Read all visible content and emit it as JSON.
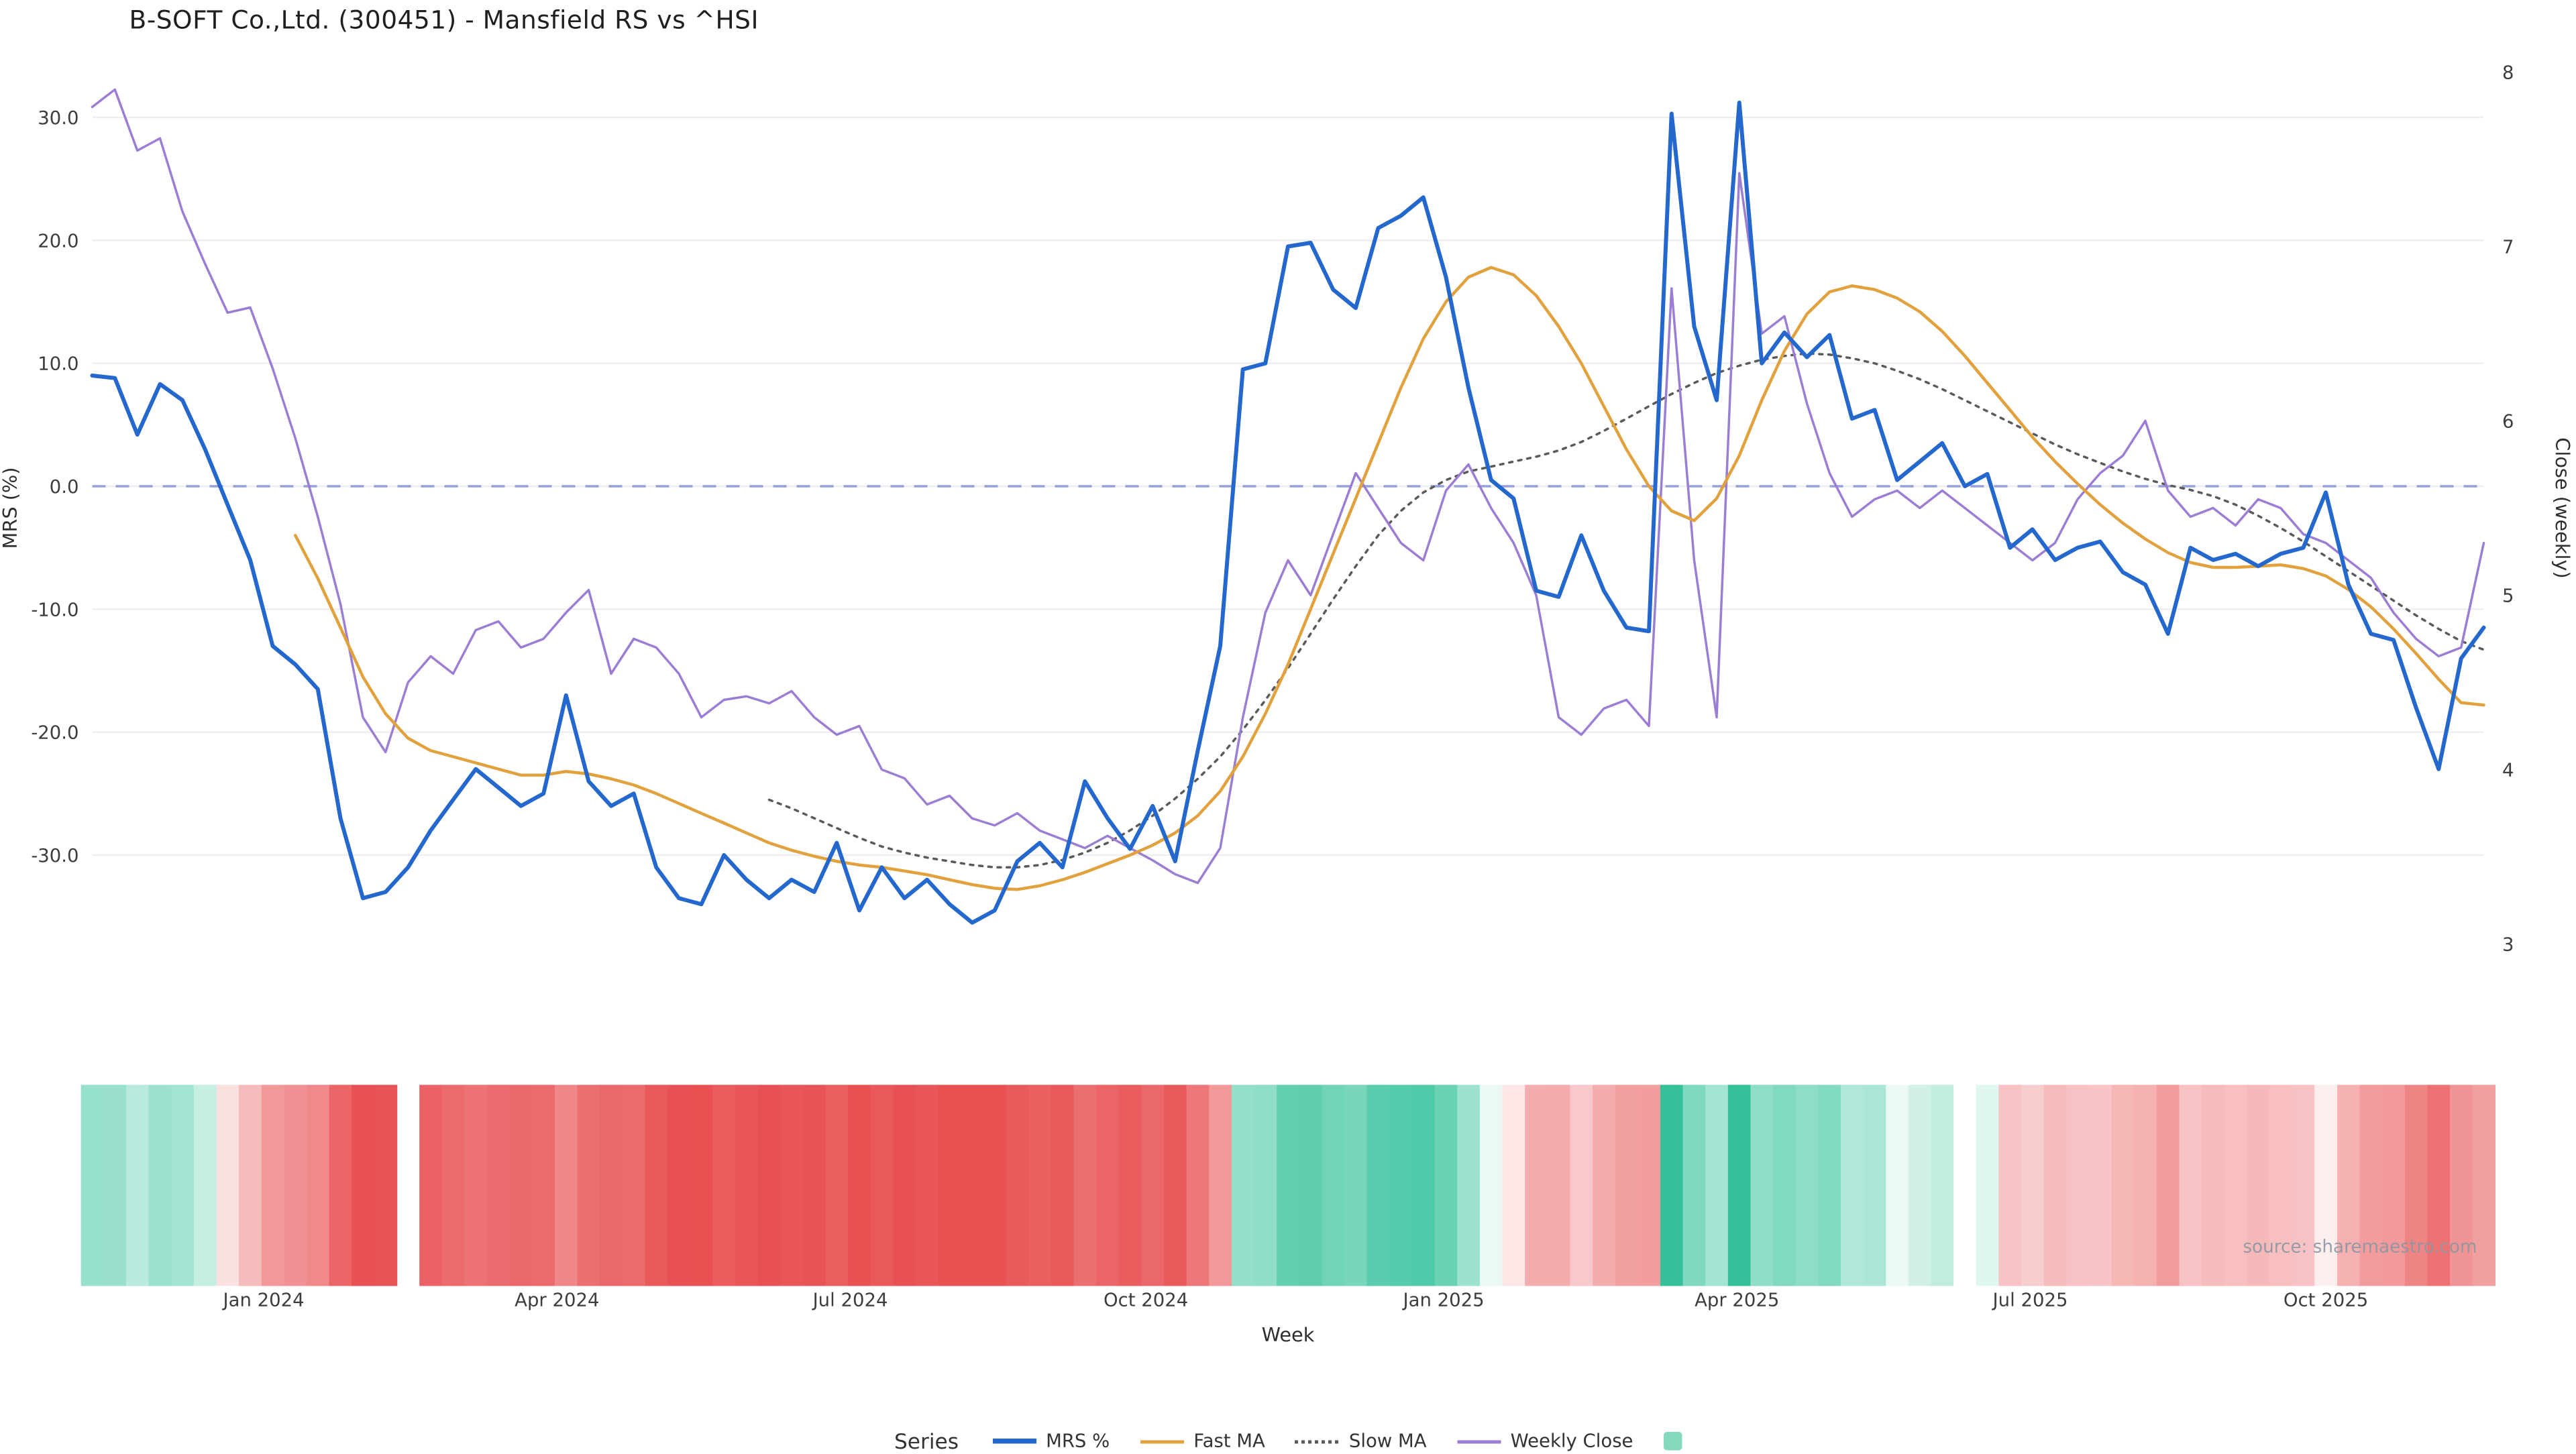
{
  "title": "B-SOFT Co.,Ltd. (300451) - Mansfield RS vs ^HSI",
  "source": "source: sharemaestro.com",
  "legend": {
    "label": "Series",
    "swatch_color": "#85d9bc"
  },
  "chart_data": {
    "type": "line",
    "title": "B-SOFT Co.,Ltd. (300451) - Mansfield RS vs ^HSI",
    "xlabel": "Week",
    "ylabel_left": "MRS (%)",
    "ylabel_right": "Close (weekly)",
    "n_weeks": 107,
    "grid": "horizontal-only",
    "legend_position": "bottom-center",
    "y_left": {
      "range": [
        -38.5,
        34.5
      ],
      "ticks": [
        {
          "v": 30,
          "label": "30.0"
        },
        {
          "v": 20,
          "label": "20.0"
        },
        {
          "v": 10,
          "label": "10.0"
        },
        {
          "v": 0,
          "label": "0.0"
        },
        {
          "v": -10,
          "label": "-10.0"
        },
        {
          "v": -20,
          "label": "-20.0"
        },
        {
          "v": -30,
          "label": "-30.0"
        }
      ]
    },
    "y_right": {
      "range": [
        3,
        8
      ],
      "ticks": [
        {
          "v": 8,
          "label": "8"
        },
        {
          "v": 7,
          "label": "7"
        },
        {
          "v": 6,
          "label": "6"
        },
        {
          "v": 5,
          "label": "5"
        },
        {
          "v": 4,
          "label": "4"
        },
        {
          "v": 3,
          "label": "3"
        }
      ]
    },
    "x_ticks": [
      {
        "pos": 7.6,
        "label": "Jan 2024"
      },
      {
        "pos": 20.6,
        "label": "Apr 2024"
      },
      {
        "pos": 33.6,
        "label": "Jul 2024"
      },
      {
        "pos": 46.7,
        "label": "Oct 2024"
      },
      {
        "pos": 59.9,
        "label": "Jan 2025"
      },
      {
        "pos": 72.9,
        "label": "Apr 2025"
      },
      {
        "pos": 85.9,
        "label": "Jul 2025"
      },
      {
        "pos": 99.0,
        "label": "Oct 2025"
      }
    ],
    "zero_line": {
      "value": 0,
      "color": "#95a0da",
      "style": "dashed"
    },
    "series": [
      {
        "name": "MRS %",
        "axis": "left",
        "color": "#2468cd",
        "width": 2.4,
        "style": "solid",
        "values": [
          9.0,
          8.8,
          4.2,
          8.3,
          7.0,
          3.0,
          -1.5,
          -6.0,
          -13.0,
          -14.5,
          -16.5,
          -27.0,
          -33.5,
          -33.0,
          -31.0,
          -28.0,
          -25.5,
          -23.0,
          -24.5,
          -26.0,
          -25.0,
          -17.0,
          -24.0,
          -26.0,
          -25.0,
          -31.0,
          -33.5,
          -34.0,
          -30.0,
          -32.0,
          -33.5,
          -32.0,
          -33.0,
          -29.0,
          -34.5,
          -31.0,
          -33.5,
          -32.0,
          -34.0,
          -35.5,
          -34.5,
          -30.5,
          -29.0,
          -31.0,
          -24.0,
          -27.0,
          -29.5,
          -26.0,
          -30.5,
          -21.5,
          -13.0,
          9.5,
          10.0,
          19.5,
          19.8,
          16.0,
          14.5,
          21.0,
          22.0,
          23.5,
          17.0,
          8.0,
          0.5,
          -1.0,
          -8.5,
          -9.0,
          -4.0,
          -8.5,
          -11.5,
          -11.8,
          30.3,
          13.0,
          7.0,
          31.2,
          10.0,
          12.5,
          10.5,
          12.3,
          5.5,
          6.2,
          0.5,
          2.0,
          3.5,
          0.0,
          1.0,
          -5.0,
          -3.5,
          -6.0,
          -5.0,
          -4.5,
          -7.0,
          -8.0,
          -12.0,
          -5.0,
          -6.0,
          -5.5,
          -6.5,
          -5.5,
          -5.0,
          -0.5,
          -8.0,
          -12.0,
          -12.5,
          -18.0,
          -23.0,
          -14.0,
          -11.5
        ]
      },
      {
        "name": "Fast MA",
        "axis": "left",
        "color": "#e1a13c",
        "width": 1.8,
        "style": "solid",
        "values": [
          null,
          null,
          null,
          null,
          null,
          null,
          null,
          null,
          null,
          -4.0,
          -7.5,
          -11.5,
          -15.5,
          -18.5,
          -20.5,
          -21.5,
          -22.0,
          -22.5,
          -23.0,
          -23.5,
          -23.5,
          -23.2,
          -23.4,
          -23.8,
          -24.3,
          -25.0,
          -25.8,
          -26.6,
          -27.4,
          -28.2,
          -29.0,
          -29.6,
          -30.1,
          -30.5,
          -30.8,
          -31.0,
          -31.3,
          -31.6,
          -32.0,
          -32.4,
          -32.7,
          -32.8,
          -32.5,
          -32.0,
          -31.4,
          -30.7,
          -30.0,
          -29.2,
          -28.2,
          -26.8,
          -24.8,
          -22.0,
          -18.5,
          -14.5,
          -10.0,
          -5.5,
          -1.0,
          3.5,
          8.0,
          12.0,
          15.0,
          17.0,
          17.8,
          17.2,
          15.5,
          13.0,
          10.0,
          6.5,
          3.0,
          0.0,
          -2.0,
          -2.8,
          -1.0,
          2.5,
          7.0,
          11.0,
          14.0,
          15.8,
          16.3,
          16.0,
          15.3,
          14.2,
          12.6,
          10.6,
          8.4,
          6.2,
          4.0,
          2.0,
          0.2,
          -1.5,
          -3.0,
          -4.3,
          -5.4,
          -6.2,
          -6.6,
          -6.6,
          -6.5,
          -6.4,
          -6.7,
          -7.3,
          -8.4,
          -9.8,
          -11.6,
          -13.6,
          -15.7,
          -17.6,
          -17.8
        ]
      },
      {
        "name": "Slow MA",
        "axis": "left",
        "color": "#5a5a5a",
        "width": 1.4,
        "style": "dotted",
        "dash": "2 3.5",
        "values": [
          null,
          null,
          null,
          null,
          null,
          null,
          null,
          null,
          null,
          null,
          null,
          null,
          null,
          null,
          null,
          null,
          null,
          null,
          null,
          null,
          null,
          null,
          null,
          null,
          null,
          null,
          null,
          null,
          null,
          null,
          -25.5,
          -26.2,
          -27.0,
          -27.8,
          -28.6,
          -29.3,
          -29.8,
          -30.2,
          -30.5,
          -30.8,
          -31.0,
          -31.0,
          -30.8,
          -30.4,
          -29.8,
          -29.0,
          -28.0,
          -26.8,
          -25.4,
          -23.8,
          -22.0,
          -19.8,
          -17.4,
          -14.8,
          -12.0,
          -9.2,
          -6.5,
          -4.0,
          -2.0,
          -0.5,
          0.5,
          1.2,
          1.6,
          2.0,
          2.4,
          2.9,
          3.6,
          4.5,
          5.5,
          6.5,
          7.5,
          8.4,
          9.2,
          9.8,
          10.3,
          10.6,
          10.8,
          10.7,
          10.4,
          10.0,
          9.4,
          8.7,
          7.9,
          7.0,
          6.1,
          5.2,
          4.3,
          3.4,
          2.6,
          1.9,
          1.2,
          0.6,
          0.1,
          -0.3,
          -0.8,
          -1.5,
          -2.4,
          -3.4,
          -4.5,
          -5.7,
          -6.9,
          -8.1,
          -9.3,
          -10.5,
          -11.6,
          -12.6,
          -13.3
        ]
      },
      {
        "name": "Weekly Close",
        "axis": "right",
        "color": "#9b7ed3",
        "width": 1.4,
        "style": "solid",
        "values": [
          7.8,
          7.9,
          7.55,
          7.62,
          7.2,
          6.9,
          6.62,
          6.65,
          6.3,
          5.9,
          5.45,
          4.95,
          4.3,
          4.1,
          4.5,
          4.65,
          4.55,
          4.8,
          4.85,
          4.7,
          4.75,
          4.9,
          5.03,
          4.55,
          4.75,
          4.7,
          4.55,
          4.3,
          4.4,
          4.42,
          4.38,
          4.45,
          4.3,
          4.2,
          4.25,
          4.0,
          3.95,
          3.8,
          3.85,
          3.72,
          3.68,
          3.75,
          3.65,
          3.6,
          3.55,
          3.62,
          3.55,
          3.48,
          3.4,
          3.35,
          3.55,
          4.3,
          4.9,
          5.2,
          5.0,
          5.35,
          5.7,
          5.5,
          5.3,
          5.2,
          5.6,
          5.75,
          5.5,
          5.3,
          5.0,
          4.3,
          4.2,
          4.35,
          4.4,
          4.25,
          6.76,
          5.2,
          4.3,
          7.42,
          6.5,
          6.6,
          6.1,
          5.7,
          5.45,
          5.55,
          5.6,
          5.5,
          5.6,
          5.5,
          5.4,
          5.3,
          5.2,
          5.3,
          5.55,
          5.7,
          5.8,
          6.0,
          5.6,
          5.45,
          5.5,
          5.4,
          5.55,
          5.5,
          5.35,
          5.3,
          5.2,
          5.1,
          4.9,
          4.75,
          4.65,
          4.7,
          5.3
        ]
      }
    ],
    "heatmap": {
      "derived_from": "MRS %",
      "gap_index": 14,
      "positive_color": "#35c29b",
      "negative_color": "#e85052",
      "pos_max": 30,
      "neg_max": 34
    }
  }
}
